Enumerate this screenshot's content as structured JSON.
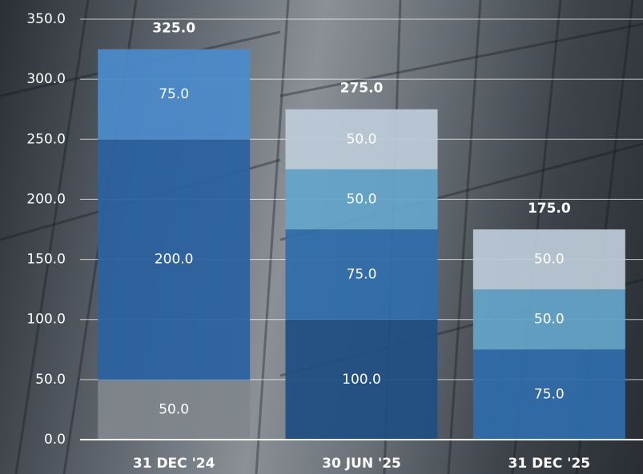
{
  "chart_data": {
    "type": "stacked-bar",
    "categories": [
      "31 DEC '24",
      "30 JUN '25",
      "31 DEC '25"
    ],
    "series": [
      {
        "values": [
          50,
          100,
          75
        ],
        "value_labels": [
          "50.0",
          "100.0",
          "75.0"
        ],
        "colors": [
          "#80868c",
          "#1f4f82",
          "#2f6dab"
        ]
      },
      {
        "values": [
          200,
          75,
          50
        ],
        "value_labels": [
          "200.0",
          "75.0",
          "50.0"
        ],
        "colors": [
          "#2b62a0",
          "#2f6dab",
          "#64a5c9"
        ]
      },
      {
        "values": [
          75,
          50,
          50
        ],
        "value_labels": [
          "75.0",
          "50.0",
          "50.0"
        ],
        "colors": [
          "#4a8bcb",
          "#64a5c9",
          "#bccbd8"
        ]
      },
      {
        "values": [
          null,
          50,
          null
        ],
        "value_labels": [
          null,
          "50.0",
          null
        ],
        "colors": [
          null,
          "#bccbd8",
          null
        ]
      }
    ],
    "totals": [
      325,
      275,
      175
    ],
    "total_labels": [
      "325.0",
      "275.0",
      "175.0"
    ],
    "ylim": [
      0,
      350
    ],
    "yticks": [
      {
        "value": 0,
        "label": "0.0"
      },
      {
        "value": 50,
        "label": "50.0"
      },
      {
        "value": 100,
        "label": "100.0"
      },
      {
        "value": 150,
        "label": "150.0"
      },
      {
        "value": 200,
        "label": "200.0"
      },
      {
        "value": 250,
        "label": "250.0"
      },
      {
        "value": 300,
        "label": "300.0"
      },
      {
        "value": 350,
        "label": "350.0"
      }
    ],
    "grid": true
  }
}
